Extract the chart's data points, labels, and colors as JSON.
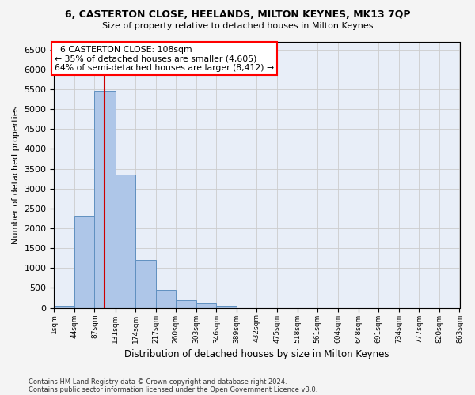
{
  "title1": "6, CASTERTON CLOSE, HEELANDS, MILTON KEYNES, MK13 7QP",
  "title2": "Size of property relative to detached houses in Milton Keynes",
  "xlabel": "Distribution of detached houses by size in Milton Keynes",
  "ylabel": "Number of detached properties",
  "footnote1": "Contains HM Land Registry data © Crown copyright and database right 2024.",
  "footnote2": "Contains public sector information licensed under the Open Government Licence v3.0.",
  "annotation_title": "6 CASTERTON CLOSE: 108sqm",
  "annotation_line1": "← 35% of detached houses are smaller (4,605)",
  "annotation_line2": "64% of semi-detached houses are larger (8,412) →",
  "bin_edges": [
    1,
    44,
    87,
    131,
    174,
    217,
    260,
    303,
    346,
    389,
    432,
    475,
    518,
    561,
    604,
    648,
    691,
    734,
    777,
    820,
    863
  ],
  "bar_heights": [
    55,
    2300,
    5450,
    3350,
    1200,
    450,
    190,
    105,
    50,
    0,
    0,
    0,
    0,
    0,
    0,
    0,
    0,
    0,
    0,
    0
  ],
  "bar_color": "#aec6e8",
  "bar_edge_color": "#6090c0",
  "vline_x": 108,
  "vline_color": "#cc0000",
  "ylim_max": 6700,
  "yticks": [
    0,
    500,
    1000,
    1500,
    2000,
    2500,
    3000,
    3500,
    4000,
    4500,
    5000,
    5500,
    6000,
    6500
  ],
  "grid_color": "#cccccc",
  "bg_color": "#e8eef8",
  "fig_bg_color": "#f4f4f4"
}
